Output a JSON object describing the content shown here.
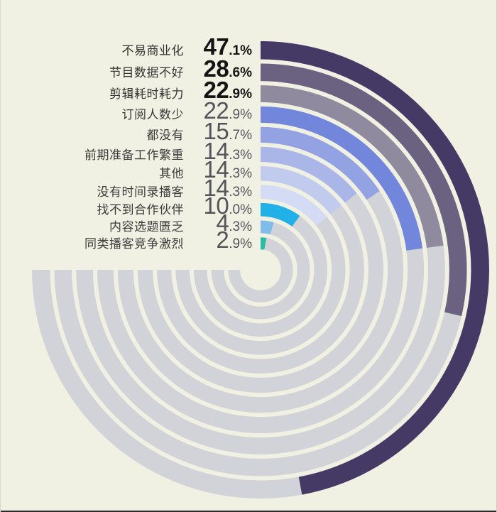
{
  "background": "#f1f1e3",
  "chart_data": {
    "type": "radial-bar",
    "title": "",
    "unit": "%",
    "start_position": "12-oclock",
    "direction": "clockwise",
    "degrees_per_percent": 3.6,
    "track_span_deg": 270,
    "track_color": "#d2d3d9",
    "legend_position": "upper-left, one row per ring, outermost ring first",
    "rows": [
      {
        "label": "不易商业化",
        "value": "47.1",
        "color": "#443a65",
        "emphasis": true
      },
      {
        "label": "节目数据不好",
        "value": "28.6",
        "color": "#6b6180",
        "emphasis": true
      },
      {
        "label": "剪辑耗时耗力",
        "value": "22.9",
        "color": "#8f8a9d",
        "emphasis": true
      },
      {
        "label": "订阅人数少",
        "value": "22.9",
        "color": "#7286db",
        "emphasis": false
      },
      {
        "label": "都没有",
        "value": "15.7",
        "color": "#93a2e2",
        "emphasis": false
      },
      {
        "label": "前期准备工作繁重",
        "value": "14.3",
        "color": "#a9b6e7",
        "emphasis": false
      },
      {
        "label": "其他",
        "value": "14.3",
        "color": "#c1cbee",
        "emphasis": false
      },
      {
        "label": "没有时间录播客",
        "value": "14.3",
        "color": "#d3dcf4",
        "emphasis": false
      },
      {
        "label": "找不到合作伙伴",
        "value": "10.0",
        "color": "#22b0e9",
        "emphasis": false
      },
      {
        "label": "内容选题匮乏",
        "value": "4.3",
        "color": "#80bce9",
        "emphasis": false
      },
      {
        "label": "同类播客竞争激烈",
        "value": "2.9",
        "color": "#27bda4",
        "emphasis": false
      }
    ]
  }
}
